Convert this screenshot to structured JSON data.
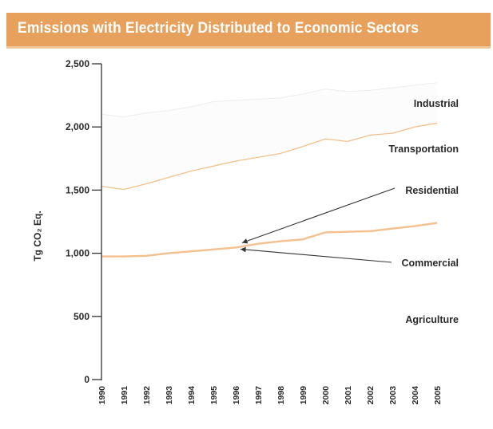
{
  "header": {
    "title": "Emissions with Electricity Distributed to Economic Sectors",
    "accent_color": "#e8a15c"
  },
  "chart_data": {
    "type": "area",
    "title": "Emissions with Electricity Distributed to Economic Sectors",
    "xlabel": "",
    "ylabel": "Tg CO₂ Eq.",
    "ylim": [
      0,
      2500
    ],
    "yticks": [
      0,
      500,
      1000,
      1500,
      2000,
      2500
    ],
    "ytick_labels": [
      "0",
      "500",
      "1,000",
      "1,500",
      "2,000",
      "2,500"
    ],
    "x": [
      "1990",
      "1991",
      "1992",
      "1993",
      "1994",
      "1995",
      "1996",
      "1997",
      "1998",
      "1999",
      "2000",
      "2001",
      "2002",
      "2003",
      "2004",
      "2005"
    ],
    "grid": false,
    "legend": "inline-right",
    "series": [
      {
        "name": "Agriculture",
        "values": [
          0,
          0,
          0,
          0,
          0,
          0,
          0,
          0,
          0,
          0,
          0,
          0,
          0,
          0,
          0,
          0
        ]
      },
      {
        "name": "Commercial",
        "values": [
          975,
          975,
          980,
          1000,
          1015,
          1030,
          1045,
          1075,
          1095,
          1110,
          1165,
          1170,
          1175,
          1195,
          1215,
          1240
        ]
      },
      {
        "name": "Residential",
        "values": [
          975,
          975,
          980,
          1000,
          1015,
          1030,
          1045,
          1075,
          1095,
          1110,
          1165,
          1170,
          1175,
          1195,
          1215,
          1240
        ]
      },
      {
        "name": "Transportation",
        "values": [
          1530,
          1505,
          1550,
          1600,
          1650,
          1690,
          1730,
          1760,
          1790,
          1845,
          1905,
          1885,
          1935,
          1950,
          2000,
          2030
        ]
      },
      {
        "name": "Industrial",
        "values": [
          2100,
          2080,
          2110,
          2130,
          2160,
          2200,
          2210,
          2220,
          2230,
          2260,
          2300,
          2280,
          2290,
          2310,
          2330,
          2350
        ]
      }
    ],
    "colors": {
      "line": "#f4c08c",
      "industrial_fill": "#fcfcfc",
      "transport_fill": "#ffffff"
    },
    "annotations": [
      "Residential",
      "Commercial"
    ]
  }
}
